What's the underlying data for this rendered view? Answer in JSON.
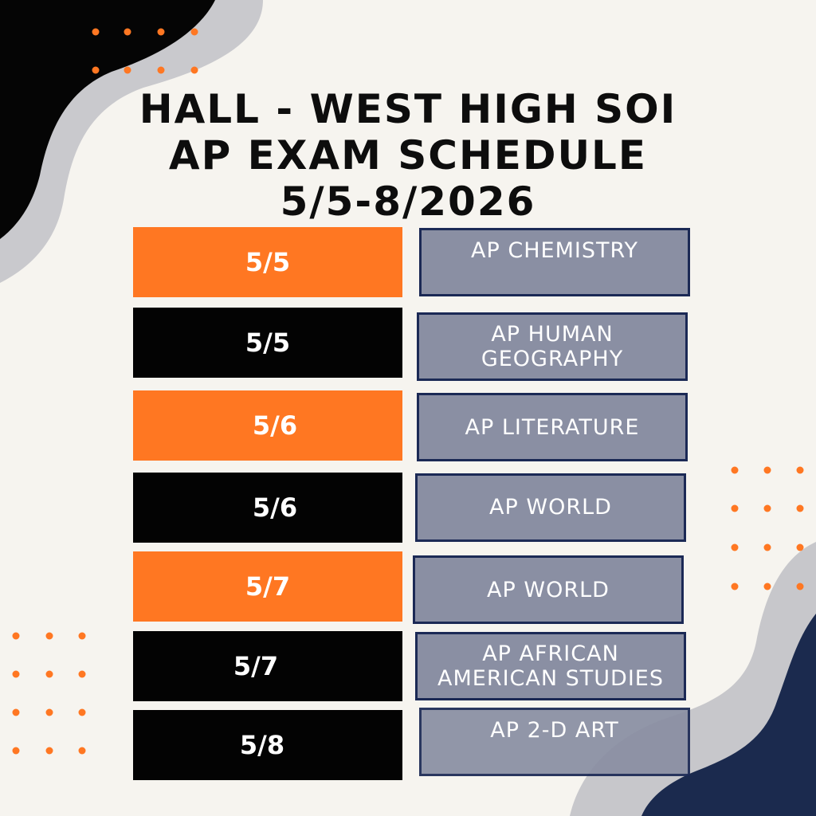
{
  "title": {
    "line1": "HALL - WEST HIGH SOI",
    "line2": "AP EXAM SCHEDULE",
    "line3": "5/5-8/2026"
  },
  "rows": [
    {
      "date": "5/5",
      "exam": "AP CHEMISTRY"
    },
    {
      "date": "5/5",
      "exam_line1": "AP HUMAN",
      "exam_line2": "GEOGRAPHY"
    },
    {
      "date": "5/6",
      "exam": "AP LITERATURE"
    },
    {
      "date": "5/6",
      "exam": "AP WORLD"
    },
    {
      "date": "5/7",
      "exam": "AP WORLD"
    },
    {
      "date": "5/7",
      "exam_line1": "AP AFRICAN",
      "exam_line2": "AMERICAN STUDIES"
    },
    {
      "date": "5/8",
      "exam": "AP 2-D ART"
    }
  ],
  "colors": {
    "background": "#f6f4ef",
    "orange": "#ff7722",
    "black": "#030303",
    "exam_box": "#8a8fa3",
    "exam_border": "#1b2955",
    "navy_blob": "#1b2a4e",
    "grey_blob": "#c9c9cd"
  }
}
